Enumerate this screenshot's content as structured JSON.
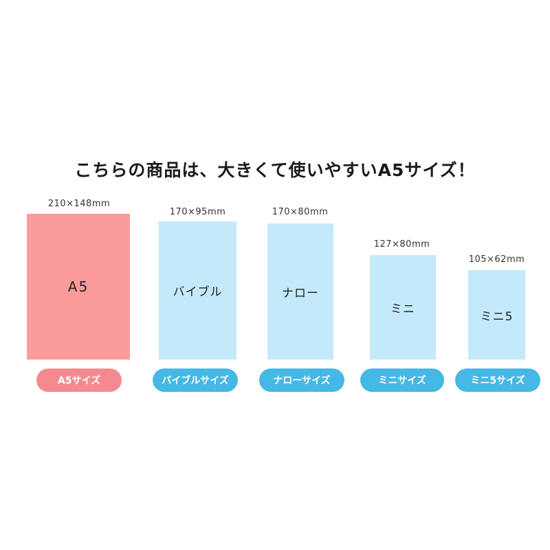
{
  "headline": "こちらの商品は、大きくて使いやすいA5サイズ！",
  "sizes": [
    {
      "dimensions": "210×148mm",
      "card_label": "A5",
      "pill_label": "A5サイズ",
      "color": "#fb9b9b",
      "pill_color": "#f48a8f"
    },
    {
      "dimensions": "170×95mm",
      "card_label": "バイブル",
      "pill_label": "バイブルサイズ",
      "color": "#c3e9fa",
      "pill_color": "#45b8e6"
    },
    {
      "dimensions": "170×80mm",
      "card_label": "ナロー",
      "pill_label": "ナローサイズ",
      "color": "#c3e9fa",
      "pill_color": "#45b8e6"
    },
    {
      "dimensions": "127×80mm",
      "card_label": "ミニ",
      "pill_label": "ミニサイズ",
      "color": "#c3e9fa",
      "pill_color": "#45b8e6"
    },
    {
      "dimensions": "105×62mm",
      "card_label": "ミニ5",
      "pill_label": "ミニ5サイズ",
      "color": "#c3e9fa",
      "pill_color": "#45b8e6"
    }
  ]
}
